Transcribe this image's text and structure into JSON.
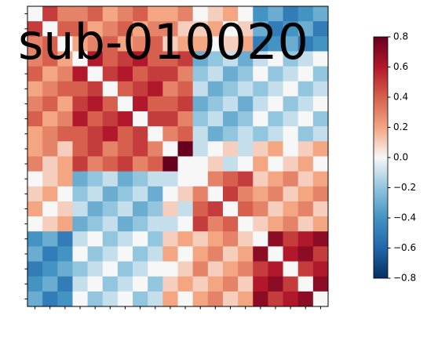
{
  "chart_data": {
    "type": "heatmap",
    "title": "sub-010020",
    "categories": [
      null,
      null,
      null,
      null,
      null,
      null,
      null,
      null,
      null,
      null,
      null,
      null,
      null,
      null,
      null,
      null,
      null,
      null,
      null,
      null
    ],
    "values": [
      [
        0,
        0.5,
        0.3,
        0.3,
        0.4,
        0.2,
        0.3,
        0.4,
        0.2,
        0.2,
        0.3,
        0,
        0.1,
        0.2,
        0,
        -0.4,
        -0.3,
        -0.5,
        -0.4,
        -0.3
      ],
      [
        0.5,
        0,
        0.4,
        0.4,
        0.2,
        0.3,
        0.4,
        0.2,
        0.3,
        0.3,
        0.1,
        0.1,
        0.2,
        0,
        0.1,
        -0.3,
        -0.5,
        -0.4,
        -0.3,
        -0.5
      ],
      [
        0.3,
        0.4,
        0,
        0.2,
        0.3,
        0.4,
        0.2,
        0.3,
        0.4,
        0.1,
        0.2,
        0.2,
        0,
        0.1,
        0.2,
        -0.5,
        -0.4,
        -0.3,
        -0.5,
        -0.4
      ],
      [
        0.3,
        0.4,
        0.2,
        0,
        0.6,
        0.4,
        0.5,
        0.6,
        0.4,
        0.4,
        0.5,
        -0.3,
        -0.2,
        -0.1,
        -0.3,
        -0.1,
        0,
        -0.2,
        -0.1,
        0
      ],
      [
        0.4,
        0.2,
        0.3,
        0.6,
        0,
        0.5,
        0.6,
        0.4,
        0.5,
        0.5,
        0.3,
        -0.2,
        -0.1,
        -0.3,
        -0.2,
        0,
        -0.2,
        -0.1,
        0,
        -0.2
      ],
      [
        0.2,
        0.3,
        0.4,
        0.4,
        0.5,
        0,
        0.4,
        0.5,
        0.6,
        0.3,
        0.4,
        -0.1,
        -0.3,
        -0.2,
        -0.1,
        -0.2,
        -0.1,
        0,
        -0.2,
        -0.1
      ],
      [
        0.3,
        0.4,
        0.2,
        0.5,
        0.6,
        0.4,
        0,
        0.6,
        0.4,
        0.4,
        0.5,
        -0.3,
        -0.2,
        -0.1,
        -0.3,
        -0.1,
        0,
        -0.2,
        -0.1,
        0
      ],
      [
        0.4,
        0.2,
        0.3,
        0.6,
        0.4,
        0.5,
        0.6,
        0,
        0.5,
        0.5,
        0.3,
        -0.2,
        -0.1,
        -0.3,
        -0.2,
        0,
        -0.2,
        -0.1,
        0,
        -0.2
      ],
      [
        0.2,
        0.3,
        0.4,
        0.4,
        0.5,
        0.6,
        0.4,
        0.5,
        0,
        0.3,
        0.4,
        -0.1,
        -0.3,
        -0.2,
        -0.1,
        -0.2,
        -0.1,
        0,
        -0.2,
        -0.1
      ],
      [
        0.2,
        0.3,
        0.1,
        0.4,
        0.5,
        0.3,
        0.4,
        0.5,
        0.3,
        0,
        0.8,
        -0.1,
        0,
        0.1,
        -0.1,
        0.1,
        0.2,
        0,
        0.1,
        0.2
      ],
      [
        0.3,
        0.1,
        0.2,
        0.5,
        0.3,
        0.4,
        0.5,
        0.3,
        0.4,
        0.8,
        0,
        0,
        0.1,
        -0.1,
        0,
        0.2,
        0,
        0.1,
        0.2,
        0
      ],
      [
        0,
        0.1,
        0.2,
        -0.3,
        -0.2,
        -0.1,
        -0.3,
        -0.2,
        -0.1,
        -0.1,
        0,
        0,
        0.3,
        0.4,
        0.5,
        0.1,
        0.2,
        0.3,
        0.1,
        0.2
      ],
      [
        0.1,
        0.2,
        0,
        -0.2,
        -0.1,
        -0.3,
        -0.2,
        -0.1,
        -0.3,
        0,
        0.1,
        0.3,
        0,
        0.5,
        0.3,
        0.2,
        0.3,
        0.1,
        0.2,
        0.3
      ],
      [
        0.2,
        0,
        0.1,
        -0.1,
        -0.3,
        -0.2,
        -0.1,
        -0.3,
        -0.2,
        0.1,
        -0.1,
        0.4,
        0.5,
        0,
        0.4,
        0.3,
        0.1,
        0.2,
        0.3,
        0.1
      ],
      [
        0,
        0.1,
        0.2,
        -0.3,
        -0.2,
        -0.1,
        -0.3,
        -0.2,
        -0.1,
        -0.1,
        0,
        0.5,
        0.3,
        0.4,
        0,
        0.1,
        0.2,
        0.3,
        0.1,
        0.2
      ],
      [
        -0.4,
        -0.3,
        -0.5,
        -0.1,
        0,
        -0.2,
        -0.1,
        0,
        -0.2,
        0.1,
        0.2,
        0.1,
        0.2,
        0.3,
        0.1,
        0,
        0.7,
        0.5,
        0.6,
        0.7
      ],
      [
        -0.3,
        -0.5,
        -0.4,
        0,
        -0.2,
        -0.1,
        0,
        -0.2,
        -0.1,
        0.2,
        0,
        0.2,
        0.3,
        0.1,
        0.2,
        0.7,
        0,
        0.6,
        0.7,
        0.5
      ],
      [
        -0.5,
        -0.4,
        -0.3,
        -0.2,
        -0.1,
        0,
        -0.2,
        -0.1,
        0,
        0,
        0.1,
        0.3,
        0.1,
        0.2,
        0.3,
        0.5,
        0.6,
        0,
        0.5,
        0.6
      ],
      [
        -0.4,
        -0.3,
        -0.5,
        -0.1,
        0,
        -0.2,
        -0.1,
        0,
        -0.2,
        0.1,
        0.2,
        0.1,
        0.2,
        0.3,
        0.1,
        0.6,
        0.7,
        0.5,
        0,
        0.7
      ],
      [
        -0.3,
        -0.5,
        -0.4,
        0,
        -0.2,
        -0.1,
        0,
        -0.2,
        -0.1,
        0.2,
        0,
        0.2,
        0.3,
        0.1,
        0.2,
        0.7,
        0.5,
        0.6,
        0.7,
        0
      ]
    ],
    "clim": [
      -0.8,
      0.8
    ],
    "colorscale": [
      "#053061",
      "#2166ac",
      "#4393c3",
      "#92c5de",
      "#f7f7f7",
      "#f4a582",
      "#d6604d",
      "#b2182b",
      "#67001f"
    ],
    "cticks": [
      {
        "value": -0.8,
        "label": "−0.8"
      },
      {
        "value": -0.6,
        "label": "−0.6"
      },
      {
        "value": -0.4,
        "label": "−0.4"
      },
      {
        "value": -0.2,
        "label": "−0.2"
      },
      {
        "value": 0,
        "label": "0.0"
      },
      {
        "value": 0.2,
        "label": "0.2"
      },
      {
        "value": 0.4,
        "label": "0.4"
      },
      {
        "value": 0.6,
        "label": "0.6"
      },
      {
        "value": 0.8,
        "label": "0.8"
      }
    ]
  }
}
